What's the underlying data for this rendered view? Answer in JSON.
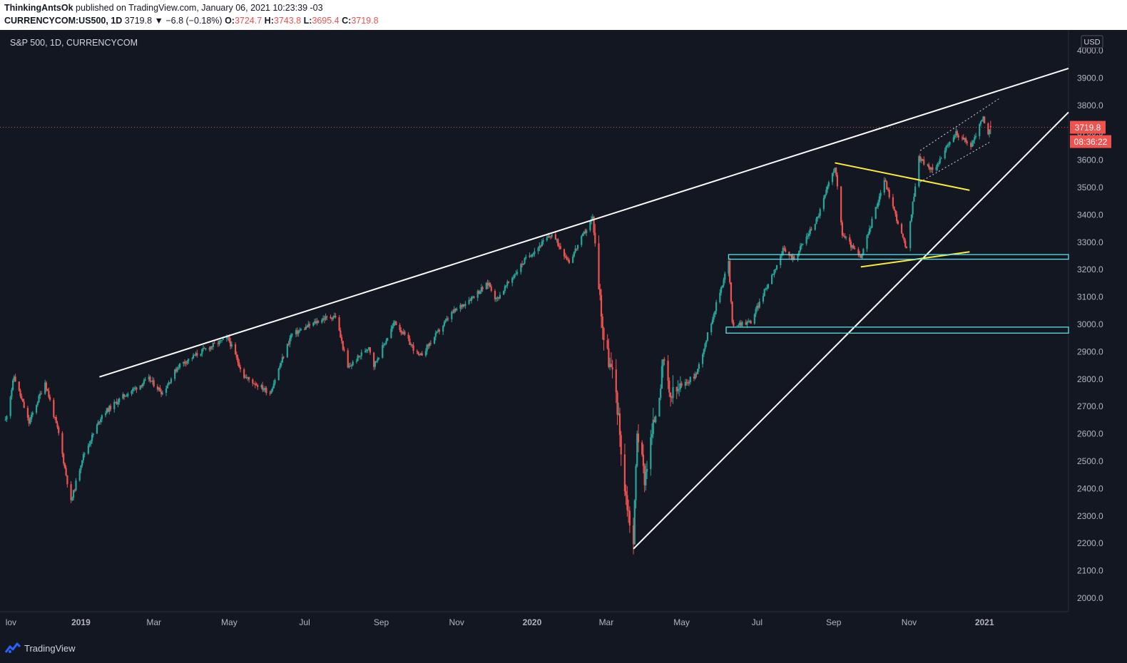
{
  "header": {
    "author": "ThinkingAntsOk",
    "published_text": "published on TradingView.com, January 06, 2021 10:23:39 -03",
    "symbol": "CURRENCYCOM:US500, 1D",
    "last": "3719.8",
    "change": "▼ −6.8 (−0.18%)",
    "o_label": "O:",
    "o_value": "3724.7",
    "h_label": "H:",
    "h_value": "3743.8",
    "l_label": "L:",
    "l_value": "3695.4",
    "c_label": "C:",
    "c_value": "3719.8"
  },
  "footer": {
    "brand": "TradingView"
  },
  "chart_data": {
    "type": "candlestick",
    "title": "S&P 500, 1D, CURRENCYCOM",
    "currency": "USD",
    "last_price_label": "3719.8",
    "countdown_label": "08:36:22",
    "y_ticks": [
      2000,
      2100,
      2200,
      2300,
      2400,
      2500,
      2600,
      2700,
      2800,
      2900,
      3000,
      3100,
      3200,
      3300,
      3400,
      3500,
      3600,
      3700,
      3800,
      3900,
      4000
    ],
    "y_tick_labels": [
      "2000.0",
      "2100.0",
      "2200.0",
      "2300.0",
      "2400.0",
      "2500.0",
      "2600.0",
      "2700.0",
      "2800.0",
      "2900.0",
      "3000.0",
      "3100.0",
      "3200.0",
      "3300.0",
      "3400.0",
      "3500.0",
      "3600.0",
      "3700.0",
      "3800.0",
      "3900.0",
      "4000.0"
    ],
    "x_ticks": [
      {
        "date": "2018-11-01",
        "label": "lov"
      },
      {
        "date": "2019-01-01",
        "label": "2019"
      },
      {
        "date": "2019-03-01",
        "label": "Mar"
      },
      {
        "date": "2019-05-01",
        "label": "May"
      },
      {
        "date": "2019-07-01",
        "label": "Jul"
      },
      {
        "date": "2019-09-01",
        "label": "Sep"
      },
      {
        "date": "2019-11-01",
        "label": "Nov"
      },
      {
        "date": "2020-01-01",
        "label": "2020"
      },
      {
        "date": "2020-03-01",
        "label": "Mar"
      },
      {
        "date": "2020-05-01",
        "label": "May"
      },
      {
        "date": "2020-07-01",
        "label": "Jul"
      },
      {
        "date": "2020-09-01",
        "label": "Sep"
      },
      {
        "date": "2020-11-01",
        "label": "Nov"
      },
      {
        "date": "2021-01-01",
        "label": "2021"
      }
    ],
    "price_path": [
      [
        "2018-11-01",
        2650
      ],
      [
        "2018-11-08",
        2810
      ],
      [
        "2018-11-20",
        2640
      ],
      [
        "2018-12-03",
        2790
      ],
      [
        "2018-12-14",
        2600
      ],
      [
        "2018-12-24",
        2350
      ],
      [
        "2019-01-02",
        2510
      ],
      [
        "2019-01-18",
        2670
      ],
      [
        "2019-02-05",
        2740
      ],
      [
        "2019-02-25",
        2800
      ],
      [
        "2019-03-08",
        2750
      ],
      [
        "2019-03-21",
        2850
      ],
      [
        "2019-04-12",
        2910
      ],
      [
        "2019-04-30",
        2950
      ],
      [
        "2019-05-13",
        2810
      ],
      [
        "2019-06-03",
        2750
      ],
      [
        "2019-06-20",
        2960
      ],
      [
        "2019-07-15",
        3020
      ],
      [
        "2019-07-26",
        3030
      ],
      [
        "2019-08-05",
        2840
      ],
      [
        "2019-08-22",
        2920
      ],
      [
        "2019-08-26",
        2850
      ],
      [
        "2019-09-12",
        3010
      ],
      [
        "2019-10-02",
        2880
      ],
      [
        "2019-10-28",
        3040
      ],
      [
        "2019-11-27",
        3150
      ],
      [
        "2019-12-03",
        3090
      ],
      [
        "2019-12-27",
        3240
      ],
      [
        "2020-01-17",
        3330
      ],
      [
        "2020-01-31",
        3230
      ],
      [
        "2020-02-19",
        3390
      ],
      [
        "2020-02-28",
        2950
      ],
      [
        "2020-03-09",
        2750
      ],
      [
        "2020-03-16",
        2400
      ],
      [
        "2020-03-23",
        2200
      ],
      [
        "2020-03-26",
        2620
      ],
      [
        "2020-04-01",
        2440
      ],
      [
        "2020-04-17",
        2870
      ],
      [
        "2020-04-21",
        2730
      ],
      [
        "2020-05-13",
        2820
      ],
      [
        "2020-06-08",
        3230
      ],
      [
        "2020-06-11",
        3000
      ],
      [
        "2020-06-26",
        3010
      ],
      [
        "2020-07-22",
        3270
      ],
      [
        "2020-07-31",
        3240
      ],
      [
        "2020-08-19",
        3390
      ],
      [
        "2020-09-02",
        3580
      ],
      [
        "2020-09-08",
        3330
      ],
      [
        "2020-09-23",
        3240
      ],
      [
        "2020-10-12",
        3530
      ],
      [
        "2020-10-30",
        3270
      ],
      [
        "2020-11-06",
        3510
      ],
      [
        "2020-11-09",
        3610
      ],
      [
        "2020-11-20",
        3560
      ],
      [
        "2020-12-09",
        3700
      ],
      [
        "2020-12-21",
        3650
      ],
      [
        "2020-12-31",
        3760
      ],
      [
        "2021-01-04",
        3690
      ],
      [
        "2021-01-06",
        3719.8
      ]
    ],
    "last_bar": {
      "open": 3724.7,
      "high": 3743.8,
      "low": 3695.4,
      "close": 3719.8
    }
  }
}
